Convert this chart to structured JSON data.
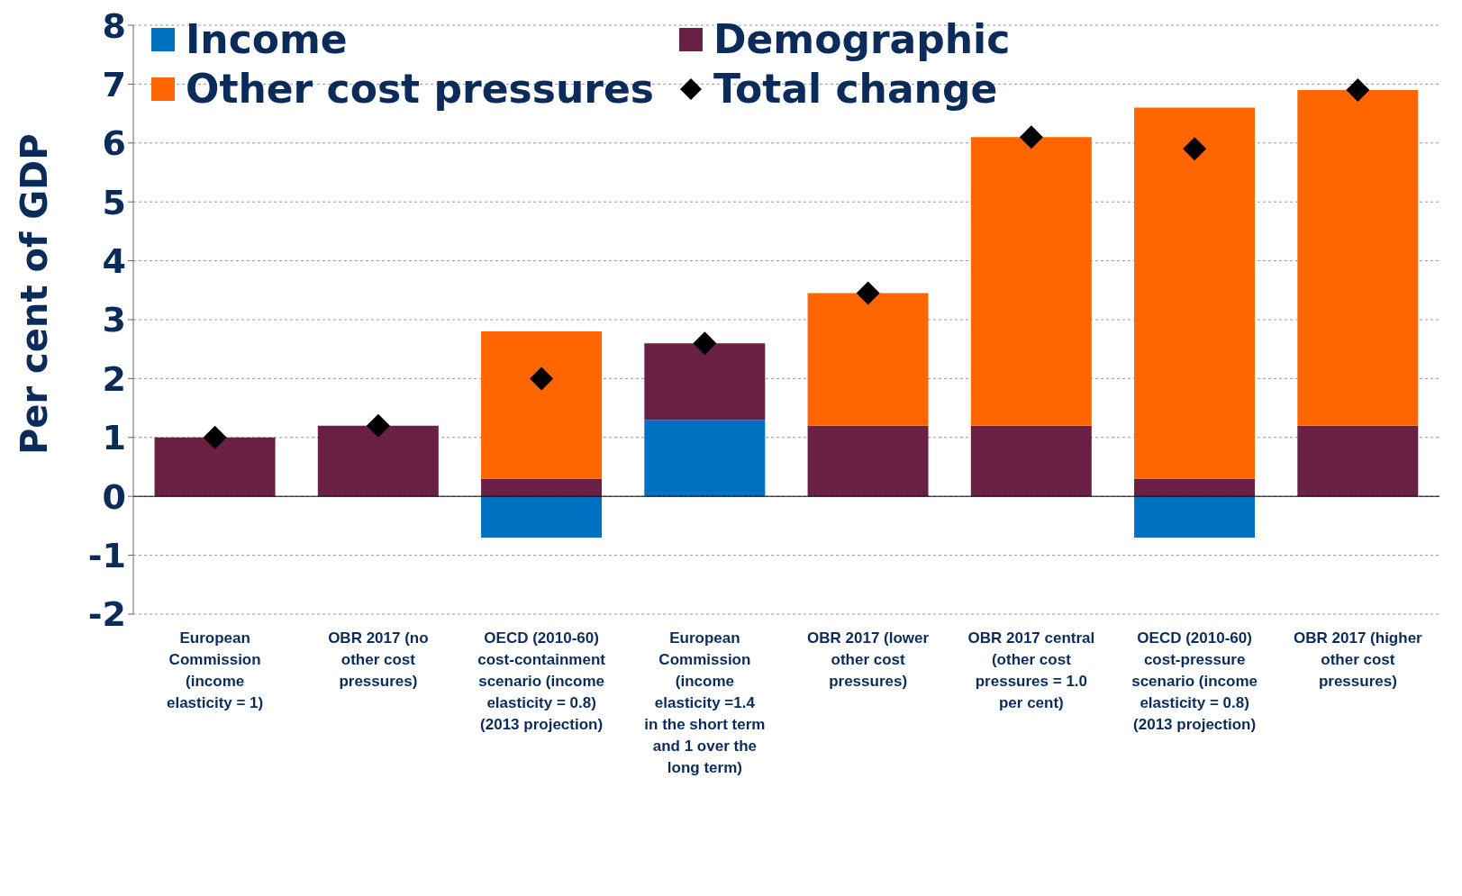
{
  "chart_data": {
    "type": "bar",
    "stacked": true,
    "ylabel": "Per cent of GDP",
    "categories": [
      "European Commission (income elasticity = 1)",
      "OBR 2017 (no other cost pressures)",
      "OECD (2010-60) cost-containment scenario (income elasticity = 0.8) (2013 projection)",
      "European Commission (income elasticity =1.4 in the short term and 1 over the long term)",
      "OBR 2017 (lower other cost pressures)",
      "OBR 2017 central (other cost pressures = 1.0 per cent)",
      "OECD (2010-60) cost-pressure scenario (income elasticity = 0.8) (2013 projection)",
      "OBR 2017 (higher other cost pressures)"
    ],
    "series": [
      {
        "name": "Income",
        "color": "#0070c0",
        "values": [
          0,
          0,
          -0.7,
          1.3,
          0,
          0,
          -0.7,
          0
        ]
      },
      {
        "name": "Demographic",
        "color": "#6a1f44",
        "values": [
          1.0,
          1.2,
          0.3,
          1.3,
          1.2,
          1.2,
          0.3,
          1.2
        ]
      },
      {
        "name": "Other cost pressures",
        "color": "#ff6600",
        "values": [
          0,
          0,
          2.5,
          0,
          2.25,
          4.9,
          6.3,
          5.7
        ]
      },
      {
        "name": "Total change",
        "type": "scatter",
        "marker": "diamond",
        "color": "#000000",
        "values": [
          1.0,
          1.2,
          2.0,
          2.6,
          3.45,
          6.1,
          5.9,
          6.9
        ]
      }
    ],
    "ylim": [
      -2,
      8
    ],
    "yticks": [
      -2,
      -1,
      0,
      1,
      2,
      3,
      4,
      5,
      6,
      7,
      8
    ],
    "grid": "y",
    "legend": "top left"
  }
}
